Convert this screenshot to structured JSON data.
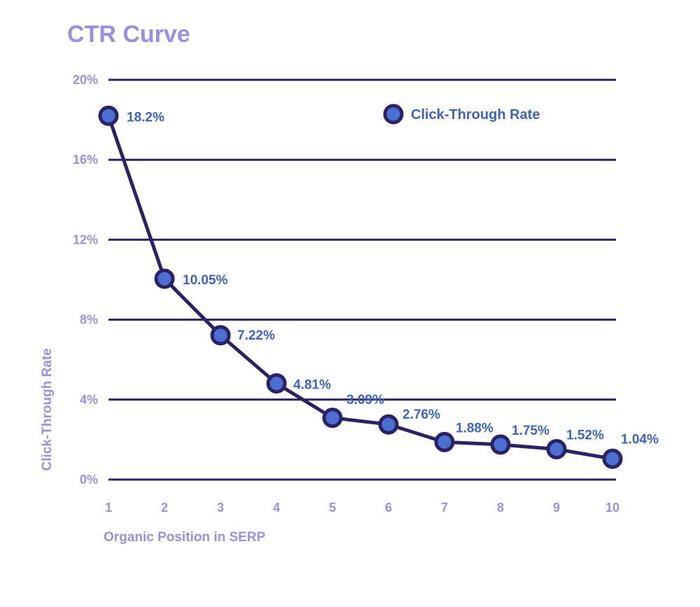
{
  "chart_data": {
    "type": "line",
    "title": "CTR Curve",
    "xlabel": "Organic Position in SERP",
    "ylabel": "Click-Through Rate",
    "x": [
      1,
      2,
      3,
      4,
      5,
      6,
      7,
      8,
      9,
      10
    ],
    "x_tick_labels": [
      "1",
      "2",
      "3",
      "4",
      "5",
      "6",
      "7",
      "8",
      "9",
      "10"
    ],
    "y_tick_labels": [
      "0%",
      "4%",
      "8%",
      "12%",
      "16%",
      "20%"
    ],
    "y_ticks": [
      0,
      4,
      8,
      12,
      16,
      20
    ],
    "ylim": [
      0,
      20
    ],
    "xlim": [
      1,
      10
    ],
    "grid": true,
    "legend_position": "top-right",
    "series": [
      {
        "name": "Click-Through Rate",
        "values": [
          18.2,
          10.05,
          7.22,
          4.81,
          3.09,
          2.76,
          1.88,
          1.75,
          1.52,
          1.04
        ],
        "data_labels": [
          "18.2%",
          "10.05%",
          "7.22%",
          "4.81%",
          "3.09%",
          "2.76%",
          "1.88%",
          "1.75%",
          "1.52%",
          "1.04%"
        ]
      }
    ],
    "colors": {
      "line": "#2b2266",
      "marker_fill": "#4a6fd1",
      "gridline": "#2b2266",
      "tick_text": "#9a8fe0",
      "data_label_text": "#3d64c2",
      "title_text": "#9a8fe0"
    }
  }
}
